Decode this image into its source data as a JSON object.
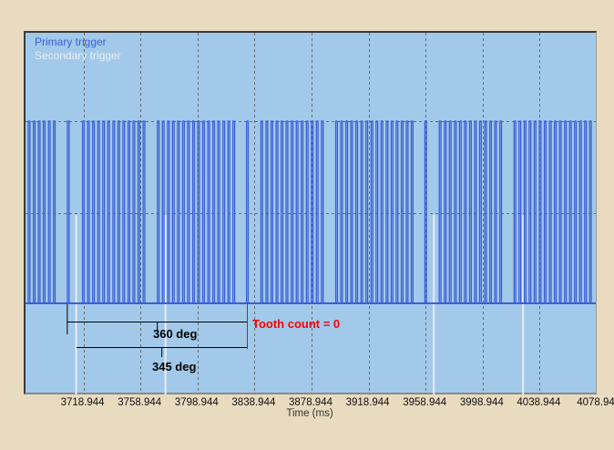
{
  "chart_data": {
    "type": "line",
    "title": "",
    "xlabel": "Time (ms)",
    "ylabel": "",
    "xlim": [
      3678.944,
      4078.944
    ],
    "x_ticks": [
      "3718.944",
      "3758.944",
      "3798.944",
      "3838.944",
      "3878.944",
      "3918.944",
      "3958.944",
      "3998.944",
      "4038.944",
      "4078.94"
    ],
    "x_tick_values": [
      3718.944,
      3758.944,
      3798.944,
      3838.944,
      3878.944,
      3918.944,
      3958.944,
      3998.944,
      4038.944,
      4078.944
    ],
    "grid": true,
    "legend_position": "top-left",
    "series": [
      {
        "name": "Primary trigger",
        "color": "#3b5fd6",
        "pulse_times_ms": [
          3680.8,
          3684.4,
          3687.9,
          3691.4,
          3695.0,
          3698.5,
          3708.3,
          3718.9,
          3722.5,
          3726.0,
          3729.6,
          3733.1,
          3736.6,
          3740.2,
          3743.7,
          3747.2,
          3750.8,
          3754.3,
          3757.8,
          3761.4,
          3771.4,
          3774.9,
          3778.5,
          3782.0,
          3785.5,
          3789.1,
          3792.6,
          3796.2,
          3799.7,
          3803.2,
          3806.8,
          3810.3,
          3813.8,
          3817.4,
          3820.9,
          3824.4,
          3833.9,
          3844.0,
          3847.6,
          3851.1,
          3854.7,
          3858.2,
          3861.7,
          3865.3,
          3868.8,
          3872.3,
          3875.9,
          3879.4,
          3882.9,
          3886.5,
          3896.5,
          3900.0,
          3903.6,
          3907.1,
          3910.6,
          3914.2,
          3917.7,
          3921.3,
          3924.8,
          3928.3,
          3931.9,
          3935.4,
          3938.9,
          3942.5,
          3946.0,
          3949.5,
          3959.0,
          3969.1,
          3972.7,
          3976.2,
          3979.8,
          3983.3,
          3986.8,
          3990.4,
          3993.9,
          3997.4,
          4001.0,
          4004.5,
          4008.0,
          4011.6,
          4021.6,
          4025.1,
          4028.7,
          4032.2,
          4035.7,
          4039.3,
          4042.8,
          4046.4,
          4049.9,
          4053.4,
          4057.0,
          4060.5,
          4064.0,
          4067.6,
          4071.1,
          4074.6
        ]
      },
      {
        "name": "Secondary trigger",
        "color": "#e6eef6",
        "pulse_times_ms": [
          3713.8,
          3776.5,
          3964.7,
          4027.3
        ]
      }
    ],
    "annotations": {
      "start_360_ms": 3707.6,
      "start_345_ms": 3714.0,
      "end_ms": 3833.9,
      "label_360": "360 deg",
      "label_345": "345 deg",
      "tooth_count_label": "Tooth count = 0",
      "tooth_count_color": "#ff0000"
    }
  }
}
